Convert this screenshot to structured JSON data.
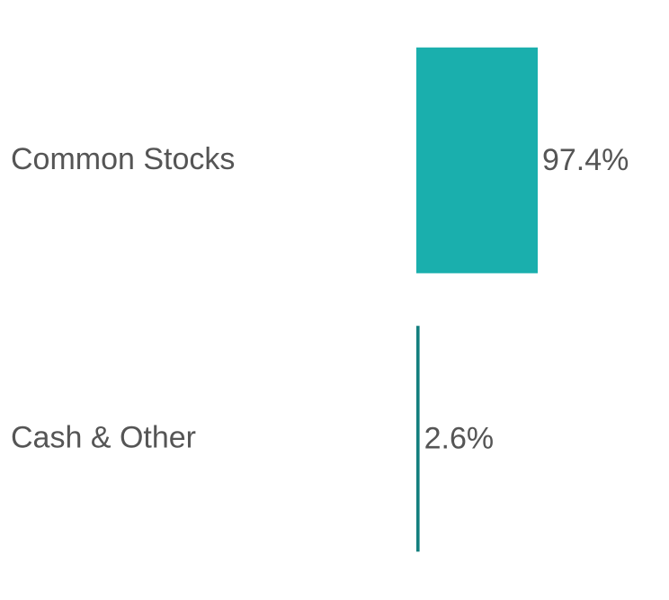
{
  "chart_data": {
    "type": "bar",
    "orientation": "horizontal",
    "categories": [
      "Common Stocks",
      "Cash & Other"
    ],
    "values": [
      97.4,
      2.6
    ],
    "value_labels": [
      "97.4%",
      "2.6%"
    ],
    "colors": [
      "#1aafad",
      "#137f7e"
    ],
    "xlim": [
      0,
      100
    ]
  }
}
